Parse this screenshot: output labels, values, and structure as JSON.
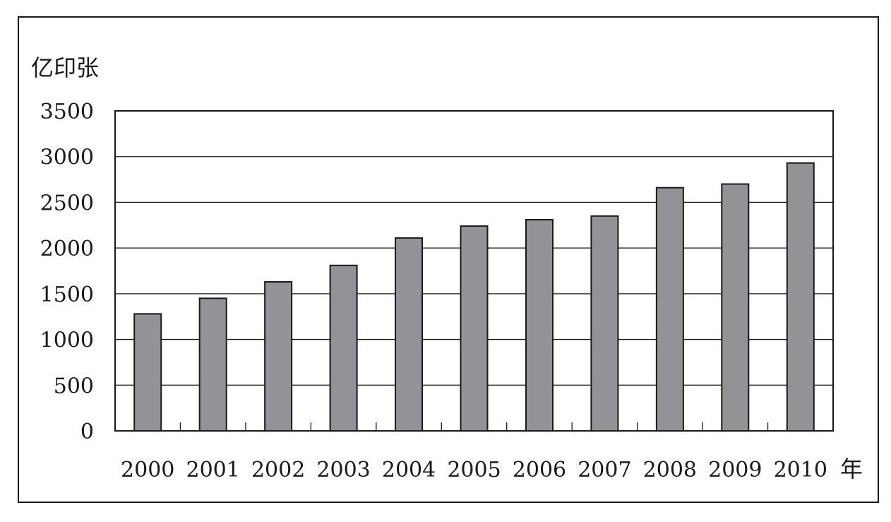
{
  "chart_data": {
    "type": "bar",
    "title": "",
    "ylabel": "亿印张",
    "xlabel": "年",
    "categories": [
      "2000",
      "2001",
      "2002",
      "2003",
      "2004",
      "2005",
      "2006",
      "2007",
      "2008",
      "2009",
      "2010"
    ],
    "values": [
      1280,
      1450,
      1630,
      1810,
      2110,
      2240,
      2310,
      2350,
      2660,
      2700,
      2930
    ],
    "ylim": [
      0,
      3500
    ],
    "yticks": [
      "0",
      "500",
      "1000",
      "1500",
      "2000",
      "2500",
      "3000",
      "3500"
    ],
    "grid": true,
    "legend": "none",
    "colors": {
      "bar_fill": "#939397",
      "bar_stroke": "#1a1a1a",
      "grid": "#1a1a1a",
      "frame": "#1a1a1a"
    }
  }
}
